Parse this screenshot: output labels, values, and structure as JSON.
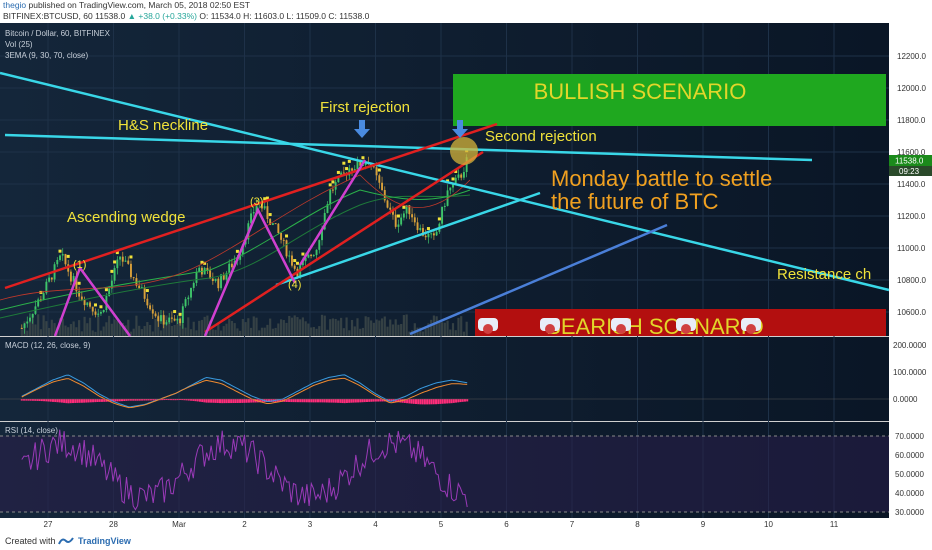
{
  "header": {
    "user": "thegio",
    "published": "published on TradingView.com, March 05, 2018 02:50 EST",
    "symbol": "BITFINEX:BTCUSD, 60",
    "last": "11538.0",
    "change": "▲ +38.0 (+0.33%)",
    "ohlc": "O: 11534.0 H: 11603.0 L: 11509.0 C: 11538.0"
  },
  "legend": {
    "pair": "Bitcoin / Dollar, 60, BITFINEX",
    "vol": "Vol (25)",
    "ema": "3EMA (9, 30, 70, close)",
    "macd": "MACD (12, 26, close, 9)",
    "rsi": "RSI (14, close)"
  },
  "price_axis": {
    "ticks": [
      "12200.0",
      "12000.0",
      "11800.0",
      "11600.0",
      "11400.0",
      "11200.0",
      "11000.0",
      "10800.0",
      "10600.0"
    ],
    "current": "11538.0",
    "countdown": "09:23"
  },
  "macd_axis": {
    "ticks": [
      "200.0000",
      "100.0000",
      "0.0000"
    ]
  },
  "rsi_axis": {
    "ticks": [
      "70.0000",
      "60.0000",
      "50.0000",
      "40.0000",
      "30.0000"
    ]
  },
  "time_axis": {
    "labels": [
      "27",
      "28",
      "Mar",
      "2",
      "3",
      "4",
      "5",
      "6",
      "7",
      "8",
      "9",
      "10",
      "11"
    ]
  },
  "annotations": {
    "bullish": "BULLISH SCENARIO",
    "bearish": "BEARISH SCENARIO",
    "first_rejection": "First rejection",
    "second_rejection": "Second rejection",
    "neckline": "H&S neckline",
    "wedge": "Ascending wedge",
    "battle_line1": "Monday battle to settle",
    "battle_line2": "the future of BTC",
    "resistance": "Resistance ch",
    "wave1": "(1)",
    "wave3": "(3)",
    "wave4": "(4)"
  },
  "colors": {
    "bullish_box": "#1fa81f",
    "bearish_box": "#b30f0f",
    "annotation_text": "#f0e23a",
    "battle_text": "#f0a020",
    "cyan_line": "#39d7e8",
    "red_line": "#e02020",
    "blue_line": "#4a7fd8",
    "magenta": "#d040d0",
    "background": "#0b1a2c"
  },
  "chart_data": {
    "type": "candlestick",
    "title": "Bitcoin / Dollar, 60, BITFINEX",
    "ylim": [
      10500,
      12300
    ],
    "close_path": [
      {
        "day": 26.6,
        "price": 10500
      },
      {
        "day": 26.9,
        "price": 10700
      },
      {
        "day": 27.2,
        "price": 10950
      },
      {
        "day": 27.5,
        "price": 10700
      },
      {
        "day": 27.8,
        "price": 10580
      },
      {
        "day": 28.1,
        "price": 10950
      },
      {
        "day": 28.4,
        "price": 10750
      },
      {
        "day": 28.7,
        "price": 10550
      },
      {
        "day": 29.0,
        "price": 10540
      },
      {
        "day": 29.3,
        "price": 10880
      },
      {
        "day": 29.6,
        "price": 10780
      },
      {
        "day": 29.9,
        "price": 10950
      },
      {
        "day": 30.2,
        "price": 11300
      },
      {
        "day": 30.5,
        "price": 11100
      },
      {
        "day": 30.8,
        "price": 10850
      },
      {
        "day": 31.1,
        "price": 11000
      },
      {
        "day": 31.3,
        "price": 11350
      },
      {
        "day": 31.6,
        "price": 11500
      },
      {
        "day": 31.9,
        "price": 11550
      },
      {
        "day": 32.1,
        "price": 11350
      },
      {
        "day": 32.3,
        "price": 11150
      },
      {
        "day": 32.5,
        "price": 11250
      },
      {
        "day": 32.7,
        "price": 11100
      },
      {
        "day": 32.9,
        "price": 11050
      },
      {
        "day": 33.1,
        "price": 11350
      },
      {
        "day": 33.3,
        "price": 11450
      },
      {
        "day": 33.4,
        "price": 11550
      }
    ],
    "macd": [
      10,
      40,
      70,
      90,
      60,
      20,
      -10,
      -30,
      -20,
      0,
      20,
      50,
      80,
      70,
      40,
      10,
      -10,
      0,
      30,
      60,
      80,
      90,
      60,
      20,
      -10,
      10,
      40,
      60,
      70,
      60
    ]
  }
}
